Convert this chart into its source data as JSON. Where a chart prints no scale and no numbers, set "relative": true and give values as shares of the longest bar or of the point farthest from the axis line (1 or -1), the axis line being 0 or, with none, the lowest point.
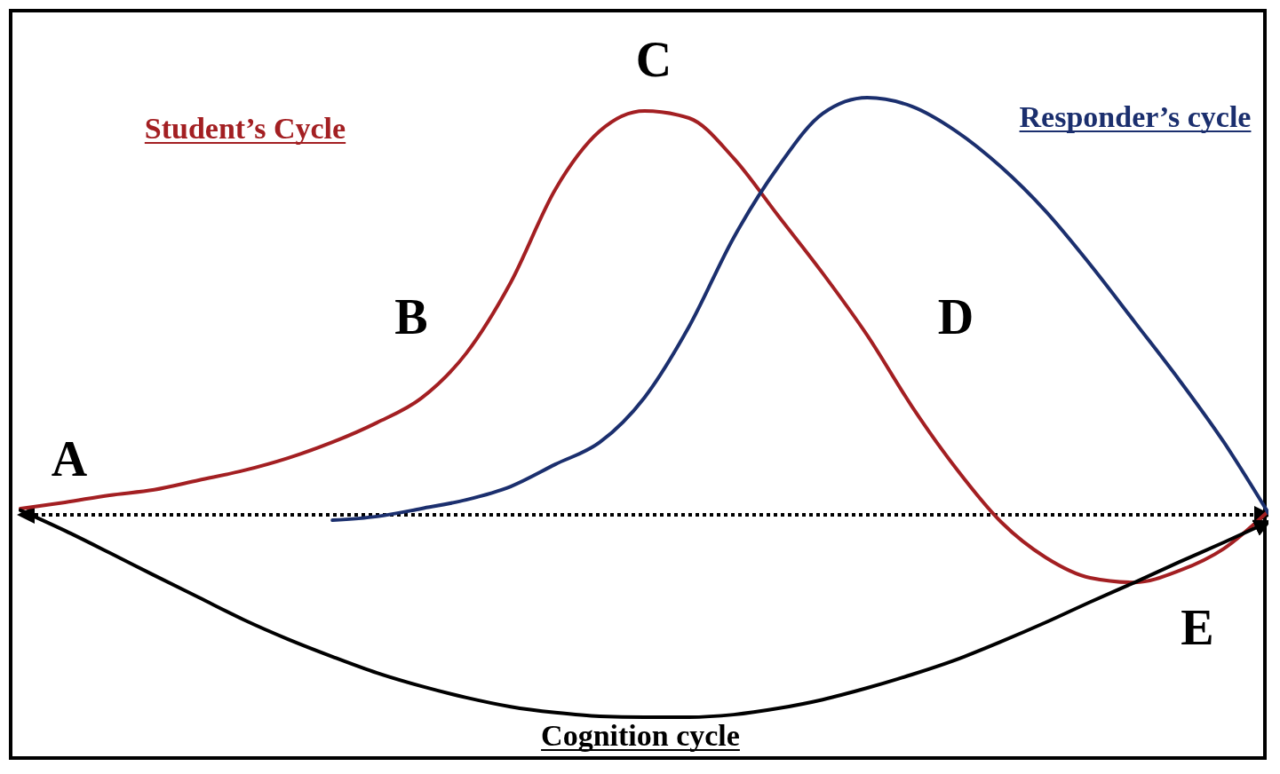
{
  "chart_data": {
    "type": "line",
    "relative": true,
    "categories": [
      null,
      null,
      null,
      null,
      null,
      null,
      null,
      null,
      null,
      null,
      null,
      null,
      null,
      null,
      null,
      null,
      null,
      null,
      null,
      null,
      null,
      null,
      null,
      null,
      null,
      null,
      null,
      null,
      null
    ],
    "series": [
      {
        "name": "Student’s Cycle",
        "color": "#a31f22",
        "values": [
          0.015,
          0.03,
          0.047,
          0.06,
          0.083,
          0.106,
          0.136,
          0.174,
          0.221,
          0.28,
          0.387,
          0.557,
          0.78,
          0.92,
          0.968,
          0.951,
          0.855,
          0.717,
          0.579,
          0.43,
          0.26,
          0.11,
          -0.017,
          -0.102,
          -0.151,
          -0.162,
          -0.134,
          -0.081,
          0.009
        ]
      },
      {
        "name": "Responder’s cycle",
        "color": "#1b2f6e",
        "values": [
          null,
          null,
          null,
          null,
          null,
          null,
          null,
          -0.013,
          -0.004,
          0.015,
          0.036,
          0.068,
          0.121,
          0.174,
          0.281,
          0.451,
          0.664,
          0.834,
          0.962,
          1,
          0.979,
          0.919,
          0.834,
          0.728,
          0.6,
          0.462,
          0.323,
          0.174,
          0.004
        ]
      },
      {
        "name": "Cognition cycle",
        "color": "#000000",
        "values": [
          0.011,
          -0.038,
          -0.091,
          -0.145,
          -0.198,
          -0.251,
          -0.298,
          -0.34,
          -0.379,
          -0.411,
          -0.438,
          -0.46,
          -0.474,
          -0.483,
          -0.485,
          -0.485,
          -0.479,
          -0.464,
          -0.443,
          -0.415,
          -0.383,
          -0.347,
          -0.304,
          -0.258,
          -0.209,
          -0.162,
          -0.113,
          -0.066,
          -0.017
        ]
      }
    ],
    "ref_lines": [
      {
        "axis": "y",
        "value": 0,
        "line_style": "dotted",
        "color": "#000000"
      }
    ],
    "annotations": [
      "A",
      "B",
      "C",
      "D",
      "E"
    ]
  }
}
